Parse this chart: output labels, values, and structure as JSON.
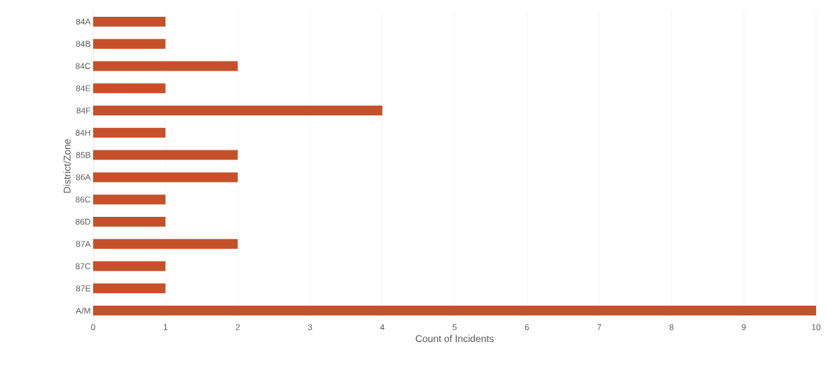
{
  "chart_data": {
    "type": "bar",
    "orientation": "horizontal",
    "xlabel": "Count of Incidents",
    "ylabel": "District/Zone",
    "categories": [
      "84A",
      "84B",
      "84C",
      "84E",
      "84F",
      "84H",
      "85B",
      "86A",
      "86C",
      "86D",
      "87A",
      "87C",
      "87E",
      "A/M"
    ],
    "values": [
      1,
      1,
      2,
      1,
      4,
      1,
      2,
      2,
      1,
      1,
      2,
      1,
      1,
      10
    ],
    "color": "#c5512a",
    "xlim": [
      0,
      10
    ],
    "xticks": [
      0,
      1,
      2,
      3,
      4,
      5,
      6,
      7,
      8,
      9,
      10
    ],
    "grid": "x"
  }
}
